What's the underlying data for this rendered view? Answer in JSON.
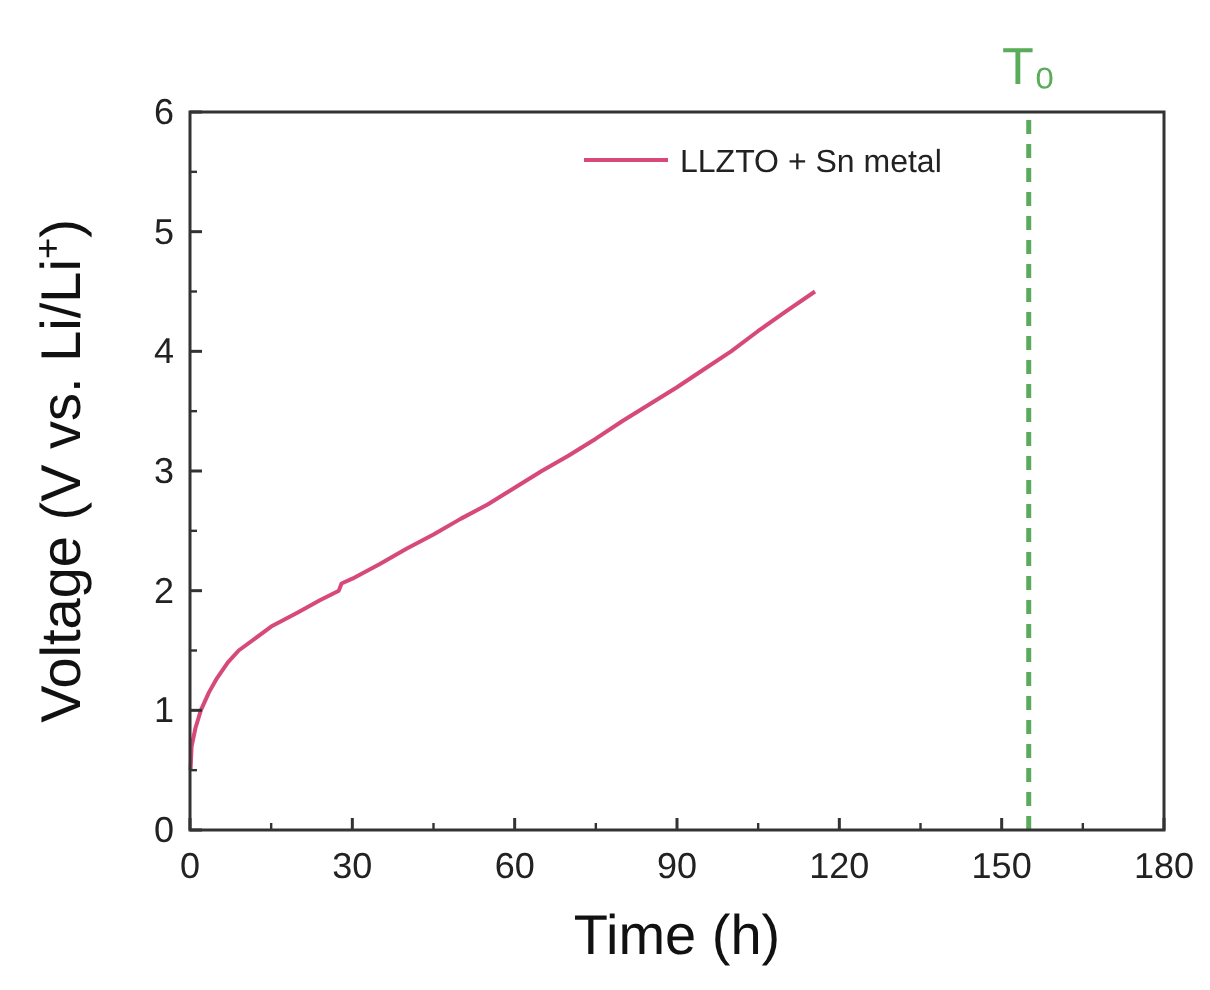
{
  "chart_data": {
    "type": "line",
    "xlabel": "Time (h)",
    "ylabel": "Voltage (V vs. Li/Li$^{+}$)",
    "xlim": [
      0,
      180
    ],
    "xticks": [
      0,
      30,
      60,
      90,
      120,
      150,
      180
    ],
    "ylim": [
      0,
      6
    ],
    "yticks": [
      0,
      1,
      2,
      3,
      4,
      5,
      6
    ],
    "legend": "top right",
    "line_style": "solid",
    "series": [
      {
        "name": "LLZTO + Sn metal",
        "color": "#d6497a",
        "x": [
          0.1,
          0.3,
          1,
          2,
          3.5,
          5,
          7,
          9,
          12,
          15,
          20,
          24,
          27.5,
          28,
          30,
          35,
          40,
          45,
          50,
          55,
          60,
          65,
          70,
          75,
          80,
          85,
          90,
          95,
          100,
          105,
          110,
          115.5
        ],
        "values": [
          0.5,
          0.7,
          0.85,
          1.0,
          1.15,
          1.27,
          1.4,
          1.5,
          1.6,
          1.7,
          1.82,
          1.92,
          2.0,
          2.06,
          2.1,
          2.22,
          2.35,
          2.47,
          2.6,
          2.72,
          2.86,
          3.0,
          3.13,
          3.27,
          3.42,
          3.56,
          3.7,
          3.85,
          4.0,
          4.17,
          4.33,
          4.5
        ]
      }
    ],
    "ref_lines": [
      {
        "axis": "x",
        "value": 155,
        "label": "T₀",
        "color": "#5aab5a",
        "line_style": "dashed"
      }
    ]
  }
}
